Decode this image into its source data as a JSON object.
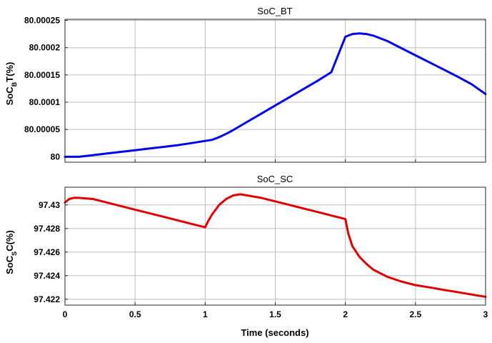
{
  "chart_data": [
    {
      "type": "line",
      "title": "SoC_BT",
      "ylabel": {
        "prefix": "SoC",
        "sub": "B",
        "suffix": "T(%)"
      },
      "xlabel": "",
      "xlim": [
        0,
        3
      ],
      "ylim": [
        79.99999,
        80.000252
      ],
      "xticks": [
        0,
        0.5,
        1,
        1.5,
        2,
        2.5,
        3
      ],
      "xtick_labels": [],
      "yticks": [
        80,
        80.00005,
        80.0001,
        80.00015,
        80.0002,
        80.00025
      ],
      "ytick_labels": [
        "80",
        "80.00005",
        "80.0001",
        "80.00015",
        "80.0002",
        "80.00025"
      ],
      "grid": true,
      "series": [
        {
          "color": "#0000ee",
          "x": [
            0,
            0.1,
            0.2,
            0.3,
            0.4,
            0.5,
            0.6,
            0.7,
            0.8,
            0.9,
            1.0,
            1.05,
            1.1,
            1.15,
            1.2,
            1.3,
            1.4,
            1.5,
            1.6,
            1.7,
            1.8,
            1.9,
            2.0,
            2.05,
            2.1,
            2.15,
            2.2,
            2.3,
            2.4,
            2.5,
            2.6,
            2.7,
            2.8,
            2.9,
            3.0
          ],
          "y": [
            80.0,
            80.0,
            80.000003,
            80.000006,
            80.000009,
            80.000012,
            80.000015,
            80.000018,
            80.000021,
            80.000025,
            80.000029,
            80.000031,
            80.000036,
            80.000042,
            80.000049,
            80.000064,
            80.000079,
            80.000094,
            80.000109,
            80.000124,
            80.000139,
            80.000155,
            80.00022,
            80.000225,
            80.000226,
            80.000225,
            80.000222,
            80.000212,
            80.000199,
            80.000186,
            80.000173,
            80.00016,
            80.000147,
            80.000133,
            80.000115
          ]
        }
      ]
    },
    {
      "type": "line",
      "title": "SoC_SC",
      "ylabel": {
        "prefix": "SoC",
        "sub": "S",
        "suffix": "C(%)"
      },
      "xlabel": "Time (seconds)",
      "xlim": [
        0,
        3
      ],
      "ylim": [
        97.4215,
        97.4315
      ],
      "xticks": [
        0,
        0.5,
        1,
        1.5,
        2,
        2.5,
        3
      ],
      "xtick_labels": [
        "0",
        "0.5",
        "1",
        "1.5",
        "2",
        "2.5",
        "3"
      ],
      "yticks": [
        97.422,
        97.424,
        97.426,
        97.428,
        97.43
      ],
      "ytick_labels": [
        "97.422",
        "97.424",
        "97.426",
        "97.428",
        "97.43"
      ],
      "grid": true,
      "series": [
        {
          "color": "#e00000",
          "x": [
            0,
            0.03,
            0.06,
            0.1,
            0.2,
            0.3,
            0.4,
            0.5,
            0.6,
            0.7,
            0.8,
            0.9,
            1.0,
            1.02,
            1.05,
            1.1,
            1.15,
            1.2,
            1.25,
            1.3,
            1.4,
            1.5,
            1.6,
            1.7,
            1.8,
            1.9,
            2.0,
            2.02,
            2.05,
            2.1,
            2.15,
            2.2,
            2.3,
            2.4,
            2.5,
            2.6,
            2.7,
            2.8,
            2.9,
            3.0
          ],
          "y": [
            97.4302,
            97.4305,
            97.4306,
            97.4306,
            97.4305,
            97.4302,
            97.4299,
            97.4296,
            97.4293,
            97.429,
            97.4287,
            97.4284,
            97.4281,
            97.4286,
            97.4292,
            97.43,
            97.4305,
            97.4308,
            97.4309,
            97.4308,
            97.4306,
            97.4303,
            97.43,
            97.4297,
            97.4294,
            97.4291,
            97.4288,
            97.4276,
            97.4265,
            97.4256,
            97.425,
            97.4245,
            97.4239,
            97.4235,
            97.4232,
            97.423,
            97.4228,
            97.4226,
            97.4224,
            97.4222
          ]
        }
      ]
    }
  ]
}
